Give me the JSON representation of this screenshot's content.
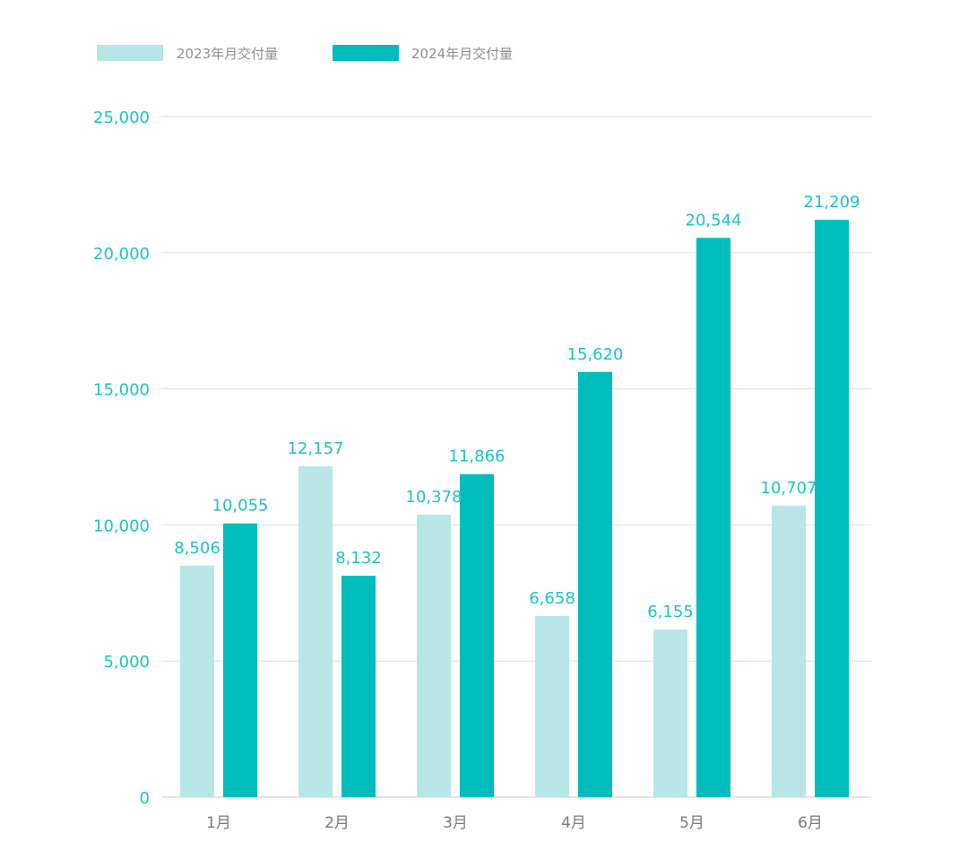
{
  "chart_data": {
    "type": "bar",
    "title": "",
    "xlabel": "",
    "ylabel": "",
    "categories": [
      "1月",
      "2月",
      "3月",
      "4月",
      "5月",
      "6月"
    ],
    "series": [
      {
        "name": "2023年月交付量",
        "values": [
          8506,
          12157,
          10378,
          6658,
          6155,
          10707
        ],
        "labels": [
          "8,506",
          "12,157",
          "10,378",
          "6,658",
          "6,155",
          "10,707"
        ],
        "color": "#b8e6e6"
      },
      {
        "name": "2024年月交付量",
        "values": [
          10055,
          8132,
          11866,
          15620,
          20544,
          21209
        ],
        "labels": [
          "10,055",
          "8,132",
          "11,866",
          "15,620",
          "20,544",
          "21,209"
        ],
        "color": "#00bdbd"
      }
    ],
    "ylim": [
      0,
      25000
    ],
    "yticks": [
      0,
      5000,
      10000,
      15000,
      20000,
      25000
    ],
    "ytick_labels": [
      "0",
      "5,000",
      "10,000",
      "15,000",
      "20,000",
      "25,000"
    ],
    "grid": true,
    "legend_position": "top-left"
  },
  "colors": {
    "accent": "#00bdbd",
    "accent_light": "#b8e6e6",
    "label_text": "#1ec3c3",
    "axis_text": "#7a7a7a",
    "grid": "#dddddd",
    "baseline": "#c8c8c8"
  }
}
